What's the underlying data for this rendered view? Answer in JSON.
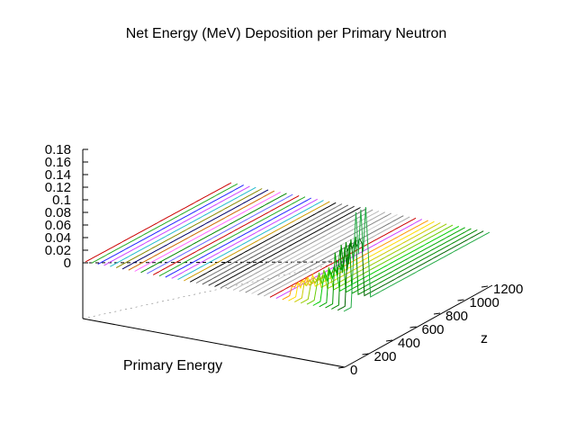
{
  "chart_data": {
    "type": "line",
    "view": "3d-surface-waterfall",
    "title": "Net Energy (MeV) Deposition per Primary Neutron",
    "xlabel": "Primary Energy",
    "ylabel": "z",
    "zlabel": "",
    "z_ticks": [
      "0.18",
      "0.16",
      "0.14",
      "0.12",
      "0.1",
      "0.08",
      "0.06",
      "0.04",
      "0.02",
      "0"
    ],
    "z_range": [
      0,
      0.18
    ],
    "y_ticks": [
      "0",
      "200",
      "400",
      "600",
      "800",
      "1000",
      "1200"
    ],
    "y_range": [
      0,
      1200
    ],
    "grid": false,
    "legend": "none",
    "series_count": 43,
    "series_colors": [
      "#cc0000",
      "#22aa22",
      "#2222ff",
      "#cc44ff",
      "#22bbcc",
      "#888800",
      "#000066",
      "#cc6600",
      "#ff66ff",
      "#008800",
      "#6666ff",
      "#cc0000",
      "#22aa22",
      "#2222ff",
      "#cc44ff",
      "#22bbcc",
      "#cc9900",
      "#000000",
      "#777777",
      "#555555",
      "#333333",
      "#000000",
      "#666666",
      "#999999",
      "#bbbbbb",
      "#aaaaaa",
      "#888888",
      "#cccccc",
      "#777777",
      "#aaaaaa",
      "#cc0000",
      "#cc44ff",
      "#ff9900",
      "#ffdd00",
      "#cccc00",
      "#99cc00",
      "#66cc00",
      "#00cc00",
      "#00aa00",
      "#009900",
      "#008800",
      "#006600",
      "#22aa44"
    ],
    "peak_series": [
      {
        "index": 32,
        "peak": 0.015
      },
      {
        "index": 33,
        "peak": 0.02
      },
      {
        "index": 34,
        "peak": 0.025
      },
      {
        "index": 35,
        "peak": 0.03
      },
      {
        "index": 36,
        "peak": 0.04
      },
      {
        "index": 37,
        "peak": 0.045
      },
      {
        "index": 38,
        "peak": 0.06
      },
      {
        "index": 39,
        "peak": 0.08
      },
      {
        "index": 40,
        "peak": 0.1
      },
      {
        "index": 41,
        "peak": 0.12
      },
      {
        "index": 42,
        "peak": 0.15
      }
    ],
    "flat_level": 0.0,
    "peak_z_range": [
      80,
      200
    ]
  }
}
